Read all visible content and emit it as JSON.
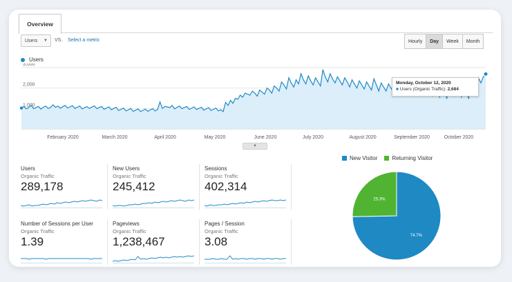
{
  "overview_tab": "Overview",
  "controls": {
    "metric": "Users",
    "vs": "VS.",
    "select_metric": "Select a metric",
    "periods": [
      "Hourly",
      "Day",
      "Week",
      "Month"
    ],
    "active_period": "Day"
  },
  "colors": {
    "primary": "#1f89c4",
    "returning": "#50b432",
    "area": "#dceefa"
  },
  "chart_data": [
    {
      "type": "area",
      "series": [
        {
          "name": "Users"
        }
      ],
      "x_tick_labels": [
        "February 2020",
        "March 2020",
        "April 2020",
        "May 2020",
        "June 2020",
        "July 2020",
        "August 2020",
        "September 2020",
        "October 2020"
      ],
      "y_tick_labels": [
        "3,000",
        "2,000",
        "1,000"
      ],
      "ylim": [
        0,
        3000
      ],
      "grid": true,
      "points": [
        1020,
        1100,
        980,
        1050,
        1150,
        990,
        1040,
        1100,
        970,
        1060,
        1120,
        1000,
        1050,
        1180,
        1060,
        1120,
        1010,
        1090,
        1150,
        1020,
        1080,
        1140,
        1000,
        1060,
        1120,
        980,
        1040,
        1090,
        1000,
        1070,
        1130,
        990,
        1050,
        1100,
        960,
        1020,
        1080,
        940,
        1000,
        1060,
        900,
        960,
        1020,
        880,
        940,
        1000,
        860,
        920,
        980,
        850,
        910,
        970,
        860,
        930,
        990,
        880,
        950,
        1320,
        1000,
        1100,
        1080,
        1040,
        1150,
        980,
        1060,
        1120,
        990,
        1050,
        1100,
        960,
        1010,
        1080,
        950,
        1000,
        1060,
        920,
        980,
        1040,
        900,
        960,
        1020,
        880,
        940,
        850,
        1300,
        1150,
        1400,
        1250,
        1500,
        1450,
        1650,
        1550,
        1750,
        1700,
        1650,
        1850,
        1750,
        1600,
        1900,
        1800,
        1700,
        2000,
        1900,
        1750,
        2100,
        2000,
        1850,
        2300,
        2150,
        1950,
        2500,
        2250,
        2050,
        2400,
        2200,
        2700,
        2400,
        2200,
        2600,
        2350,
        2150,
        2500,
        2300,
        2100,
        2900,
        2550,
        2300,
        2700,
        2450,
        2250,
        2550,
        2350,
        2150,
        2500,
        2300,
        2050,
        2400,
        2200,
        2000,
        2350,
        2150,
        1950,
        2300,
        2100,
        1900,
        2450,
        2150,
        1850,
        2250,
        2050,
        1850,
        2200,
        2000,
        1800,
        2300,
        2100,
        1750,
        2150,
        1950,
        1700,
        2050,
        1850,
        1650,
        2000,
        2200,
        1900,
        1650,
        2050,
        1850,
        1600,
        2100,
        1800,
        1550,
        1950,
        1750,
        1500,
        2000,
        1800,
        1600,
        2050,
        1850,
        1550,
        1900,
        1700,
        1500,
        2150,
        2350,
        2000,
        2500,
        2250,
        2550,
        2684
      ],
      "tooltip": {
        "date": "Monday, October 12, 2020",
        "label": "Users (Organic Traffic):",
        "value": "2,684"
      }
    },
    {
      "type": "pie",
      "series": [
        {
          "name": "New Visitor",
          "value": 74.7,
          "label": "74.7%",
          "color": "#1f89c4"
        },
        {
          "name": "Returning Visitor",
          "value": 25.3,
          "label": "25.3%",
          "color": "#50b432"
        }
      ]
    }
  ],
  "kpis": [
    {
      "name": "Users",
      "segment": "Organic Traffic",
      "value": "289,178"
    },
    {
      "name": "New Users",
      "segment": "Organic Traffic",
      "value": "245,412"
    },
    {
      "name": "Sessions",
      "segment": "Organic Traffic",
      "value": "402,314"
    },
    {
      "name": "Number of Sessions per User",
      "segment": "Organic Traffic",
      "value": "1.39"
    },
    {
      "name": "Pageviews",
      "segment": "Organic Traffic",
      "value": "1,238,467"
    },
    {
      "name": "Pages / Session",
      "segment": "Organic Traffic",
      "value": "3.08"
    }
  ]
}
